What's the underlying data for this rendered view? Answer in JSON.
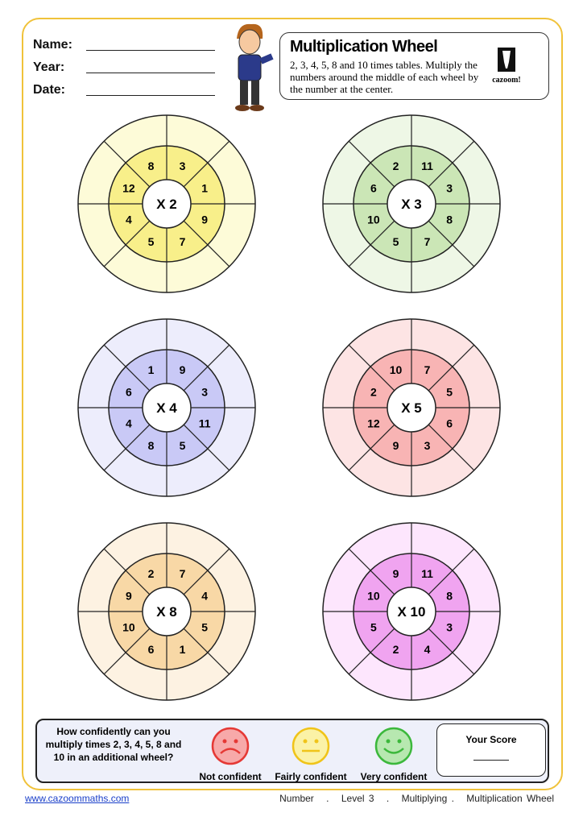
{
  "header": {
    "name_label": "Name:",
    "year_label": "Year:",
    "date_label": "Date:"
  },
  "titlebox": {
    "title": "Multiplication Wheel",
    "instructions": "2, 3, 4, 5, 8 and 10 times tables. Multiply the numbers around  the middle of each wheel by the number at the center.",
    "logo_text": "cazoom!"
  },
  "wheels": [
    {
      "center": "X 2",
      "numbers": [
        3,
        1,
        9,
        7,
        5,
        4,
        12,
        8
      ],
      "outer": "#fdfbd8",
      "middle": "#f8ef8a"
    },
    {
      "center": "X 3",
      "numbers": [
        11,
        3,
        8,
        7,
        5,
        10,
        6,
        2
      ],
      "outer": "#eef7e6",
      "middle": "#cbe6b6"
    },
    {
      "center": "X 4",
      "numbers": [
        9,
        3,
        11,
        5,
        8,
        4,
        6,
        1
      ],
      "outer": "#ededfc",
      "middle": "#c9c9f6"
    },
    {
      "center": "X 5",
      "numbers": [
        7,
        5,
        6,
        3,
        9,
        12,
        2,
        10
      ],
      "outer": "#fde4e4",
      "middle": "#f8b4b4"
    },
    {
      "center": "X 8",
      "numbers": [
        7,
        4,
        5,
        1,
        6,
        10,
        9,
        2
      ],
      "outer": "#fdf2e2",
      "middle": "#f8d8a6"
    },
    {
      "center": "X 10",
      "numbers": [
        11,
        8,
        3,
        4,
        2,
        5,
        10,
        9
      ],
      "outer": "#fde6fd",
      "middle": "#f0a4f0"
    }
  ],
  "confidence": {
    "question": "How confidently can you multiply times 2, 3, 4, 5, 8 and 10 in an additional wheel?",
    "options": [
      {
        "label": "Not confident",
        "color": "#e53935",
        "fill": "#f7a9a9"
      },
      {
        "label": "Fairly confident",
        "color": "#f0c419",
        "fill": "#fbf2a6"
      },
      {
        "label": "Very confident",
        "color": "#3cb83c",
        "fill": "#b7e8b0"
      }
    ],
    "score_label": "Your Score"
  },
  "footer": {
    "url": "www.cazoommaths.com",
    "crumbs": [
      "Number",
      ".",
      "Level 3",
      ".",
      "Multiplying .",
      "Multiplication Wheel"
    ]
  }
}
